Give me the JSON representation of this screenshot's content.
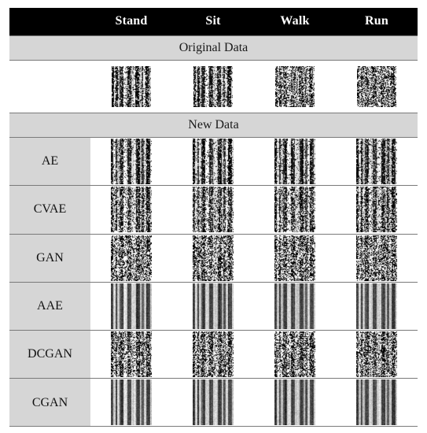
{
  "header": {
    "corner": "",
    "columns": [
      "Stand",
      "Sit",
      "Walk",
      "Run"
    ]
  },
  "sections": {
    "original": "Original  Data",
    "new": "New Data"
  },
  "models": [
    "AE",
    "CVAE",
    "GAN",
    "AAE",
    "DCGAN",
    "CGAN"
  ],
  "colors": {
    "header_bg": "#000000",
    "header_text": "#ffffff",
    "section_bg": "#d6d6d6",
    "rule": "#7a7a7a"
  }
}
